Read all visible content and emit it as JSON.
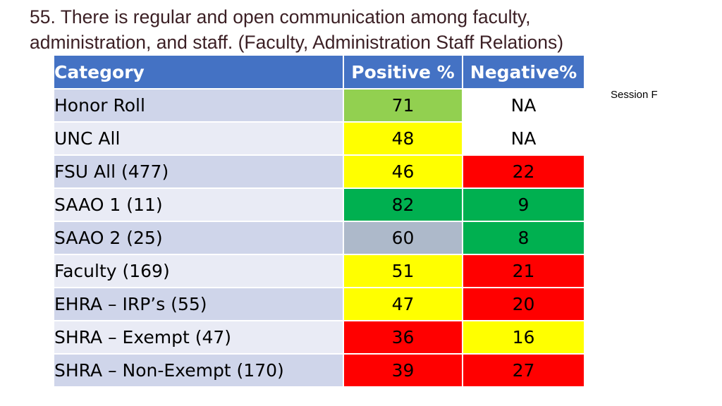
{
  "slide": {
    "title_line1": "55. There is regular and open communication among faculty,",
    "title_line2": "administration, and staff. (Faculty, Administration Staff Relations)",
    "session_note": "Session F"
  },
  "table": {
    "headers": [
      "Category",
      "Positive %",
      "Negative%"
    ],
    "rows": [
      {
        "category": "Honor Roll",
        "positive": "71",
        "negative": "NA"
      },
      {
        "category": "UNC All",
        "positive": "48",
        "negative": "NA"
      },
      {
        "category": "FSU All (477)",
        "positive": "46",
        "negative": "22"
      },
      {
        "category": "SAAO 1 (11)",
        "positive": "82",
        "negative": "9"
      },
      {
        "category": "SAAO 2 (25)",
        "positive": "60",
        "negative": "8"
      },
      {
        "category": "Faculty (169)",
        "positive": "51",
        "negative": "21"
      },
      {
        "category": "EHRA – IRP’s (55)",
        "positive": "47",
        "negative": "20"
      },
      {
        "category": "SHRA – Exempt (47)",
        "positive": "36",
        "negative": "16"
      },
      {
        "category": "SHRA – Non-Exempt (170)",
        "positive": "39",
        "negative": "27"
      }
    ],
    "cell_colors": {
      "positive": [
        "#92d050",
        "#ffff00",
        "#ffff00",
        "#00b050",
        "#adb9ca",
        "#ffff00",
        "#ffff00",
        "#ff0000",
        "#ff0000"
      ],
      "negative": [
        "#ffffff",
        "#ffffff",
        "#ff0000",
        "#00b050",
        "#00b050",
        "#ff0000",
        "#ff0000",
        "#ffff00",
        "#ff0000"
      ]
    }
  }
}
